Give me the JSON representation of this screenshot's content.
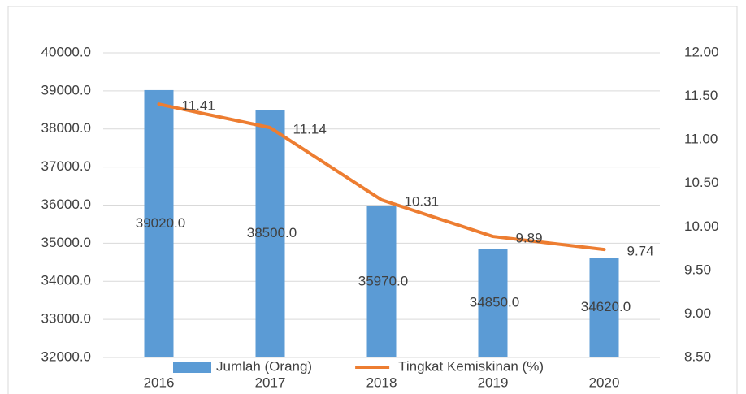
{
  "chart_data": {
    "type": "bar-line",
    "categories": [
      "2016",
      "2017",
      "2018",
      "2019",
      "2020"
    ],
    "series": [
      {
        "name": "Jumlah (Orang)",
        "type": "bar",
        "color": "#5b9bd5",
        "axis": "y",
        "values": [
          39020,
          38500,
          35970,
          34850,
          34620
        ],
        "value_labels": [
          "39020.0",
          "38500.0",
          "35970.0",
          "34850.0",
          "34620.0"
        ]
      },
      {
        "name": "Tingkat Kemiskinan (%)",
        "type": "line",
        "color": "#ed7d31",
        "axis": "y2",
        "values": [
          11.41,
          11.14,
          10.31,
          9.89,
          9.74
        ]
      }
    ],
    "ylim": [
      32000,
      40000
    ],
    "yticks": [
      {
        "value": 32000,
        "label": "32000.0"
      },
      {
        "value": 33000,
        "label": "33000.0"
      },
      {
        "value": 34000,
        "label": "34000.0"
      },
      {
        "value": 35000,
        "label": "35000.0"
      },
      {
        "value": 36000,
        "label": "36000.0"
      },
      {
        "value": 37000,
        "label": "37000.0"
      },
      {
        "value": 38000,
        "label": "38000.0"
      },
      {
        "value": 39000,
        "label": "39000.0"
      },
      {
        "value": 40000,
        "label": "40000.0"
      }
    ],
    "y2lim": [
      8.5,
      12
    ],
    "y2ticks": [
      {
        "value": 8.5,
        "label": "8.50"
      },
      {
        "value": 9,
        "label": "9.00"
      },
      {
        "value": 9.5,
        "label": "9.50"
      },
      {
        "value": 10,
        "label": "10.00"
      },
      {
        "value": 10.5,
        "label": "10.50"
      },
      {
        "value": 11,
        "label": "11.00"
      },
      {
        "value": 11.5,
        "label": "11.50"
      },
      {
        "value": 12,
        "label": "12.00"
      }
    ],
    "grid": true,
    "legend": "bottom"
  }
}
